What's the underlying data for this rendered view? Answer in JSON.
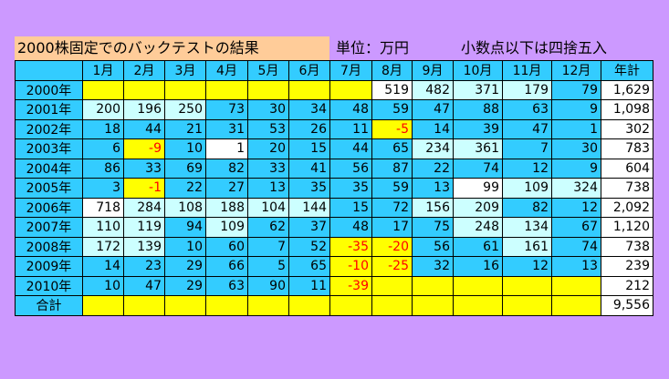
{
  "title": "2000株固定でのバックテストの結果",
  "unit": "単位：万円",
  "note": "小数点以下は四捨五入",
  "headers": [
    "",
    "1月",
    "2月",
    "3月",
    "4月",
    "5月",
    "6月",
    "7月",
    "8月",
    "9月",
    "10月",
    "11月",
    "12月",
    "年計"
  ],
  "rows": [
    {
      "label": "2000年",
      "cells": [
        {
          "v": "",
          "c": "y"
        },
        {
          "v": "",
          "c": "y"
        },
        {
          "v": "",
          "c": "y"
        },
        {
          "v": "",
          "c": "y"
        },
        {
          "v": "",
          "c": "y"
        },
        {
          "v": "",
          "c": "y"
        },
        {
          "v": "",
          "c": "y"
        },
        {
          "v": "519",
          "c": "w"
        },
        {
          "v": "482",
          "c": "l"
        },
        {
          "v": "371",
          "c": "l"
        },
        {
          "v": "179",
          "c": "l"
        },
        {
          "v": "79",
          "c": "b"
        },
        {
          "v": "1,629",
          "c": "w"
        }
      ]
    },
    {
      "label": "2001年",
      "cells": [
        {
          "v": "200",
          "c": "l"
        },
        {
          "v": "196",
          "c": "l"
        },
        {
          "v": "250",
          "c": "l"
        },
        {
          "v": "73",
          "c": "b"
        },
        {
          "v": "30",
          "c": "b"
        },
        {
          "v": "34",
          "c": "b"
        },
        {
          "v": "48",
          "c": "b"
        },
        {
          "v": "59",
          "c": "b"
        },
        {
          "v": "47",
          "c": "b"
        },
        {
          "v": "88",
          "c": "b"
        },
        {
          "v": "63",
          "c": "b"
        },
        {
          "v": "9",
          "c": "b"
        },
        {
          "v": "1,098",
          "c": "w"
        }
      ]
    },
    {
      "label": "2002年",
      "cells": [
        {
          "v": "18",
          "c": "b"
        },
        {
          "v": "44",
          "c": "b"
        },
        {
          "v": "21",
          "c": "b"
        },
        {
          "v": "31",
          "c": "b"
        },
        {
          "v": "53",
          "c": "b"
        },
        {
          "v": "26",
          "c": "b"
        },
        {
          "v": "11",
          "c": "b"
        },
        {
          "v": "-5",
          "c": "y",
          "n": true
        },
        {
          "v": "14",
          "c": "b"
        },
        {
          "v": "39",
          "c": "b"
        },
        {
          "v": "47",
          "c": "b"
        },
        {
          "v": "1",
          "c": "b"
        },
        {
          "v": "302",
          "c": "w"
        }
      ]
    },
    {
      "label": "2003年",
      "cells": [
        {
          "v": "6",
          "c": "b"
        },
        {
          "v": "-9",
          "c": "y",
          "n": true
        },
        {
          "v": "10",
          "c": "b"
        },
        {
          "v": "1",
          "c": "w"
        },
        {
          "v": "20",
          "c": "b"
        },
        {
          "v": "15",
          "c": "b"
        },
        {
          "v": "44",
          "c": "b"
        },
        {
          "v": "65",
          "c": "b"
        },
        {
          "v": "234",
          "c": "l"
        },
        {
          "v": "361",
          "c": "l"
        },
        {
          "v": "7",
          "c": "b"
        },
        {
          "v": "30",
          "c": "b"
        },
        {
          "v": "783",
          "c": "w"
        }
      ]
    },
    {
      "label": "2004年",
      "cells": [
        {
          "v": "86",
          "c": "b"
        },
        {
          "v": "33",
          "c": "b"
        },
        {
          "v": "69",
          "c": "b"
        },
        {
          "v": "82",
          "c": "b"
        },
        {
          "v": "33",
          "c": "b"
        },
        {
          "v": "41",
          "c": "b"
        },
        {
          "v": "56",
          "c": "b"
        },
        {
          "v": "87",
          "c": "b"
        },
        {
          "v": "22",
          "c": "b"
        },
        {
          "v": "74",
          "c": "b"
        },
        {
          "v": "12",
          "c": "b"
        },
        {
          "v": "9",
          "c": "b"
        },
        {
          "v": "604",
          "c": "w"
        }
      ]
    },
    {
      "label": "2005年",
      "cells": [
        {
          "v": "3",
          "c": "b"
        },
        {
          "v": "-1",
          "c": "y",
          "n": true
        },
        {
          "v": "22",
          "c": "b"
        },
        {
          "v": "27",
          "c": "b"
        },
        {
          "v": "13",
          "c": "b"
        },
        {
          "v": "35",
          "c": "b"
        },
        {
          "v": "35",
          "c": "b"
        },
        {
          "v": "59",
          "c": "b"
        },
        {
          "v": "13",
          "c": "b"
        },
        {
          "v": "99",
          "c": "w"
        },
        {
          "v": "109",
          "c": "l"
        },
        {
          "v": "324",
          "c": "l"
        },
        {
          "v": "738",
          "c": "w"
        }
      ]
    },
    {
      "label": "2006年",
      "cells": [
        {
          "v": "718",
          "c": "w"
        },
        {
          "v": "284",
          "c": "l"
        },
        {
          "v": "108",
          "c": "l"
        },
        {
          "v": "188",
          "c": "l"
        },
        {
          "v": "104",
          "c": "l"
        },
        {
          "v": "144",
          "c": "l"
        },
        {
          "v": "15",
          "c": "b"
        },
        {
          "v": "72",
          "c": "b"
        },
        {
          "v": "156",
          "c": "l"
        },
        {
          "v": "209",
          "c": "l"
        },
        {
          "v": "82",
          "c": "b"
        },
        {
          "v": "12",
          "c": "b"
        },
        {
          "v": "2,092",
          "c": "w"
        }
      ]
    },
    {
      "label": "2007年",
      "cells": [
        {
          "v": "110",
          "c": "l"
        },
        {
          "v": "119",
          "c": "l"
        },
        {
          "v": "94",
          "c": "b"
        },
        {
          "v": "109",
          "c": "l"
        },
        {
          "v": "62",
          "c": "b"
        },
        {
          "v": "37",
          "c": "b"
        },
        {
          "v": "48",
          "c": "b"
        },
        {
          "v": "17",
          "c": "b"
        },
        {
          "v": "75",
          "c": "b"
        },
        {
          "v": "248",
          "c": "l"
        },
        {
          "v": "134",
          "c": "l"
        },
        {
          "v": "67",
          "c": "b"
        },
        {
          "v": "1,120",
          "c": "w"
        }
      ]
    },
    {
      "label": "2008年",
      "cells": [
        {
          "v": "172",
          "c": "l"
        },
        {
          "v": "139",
          "c": "l"
        },
        {
          "v": "10",
          "c": "b"
        },
        {
          "v": "60",
          "c": "b"
        },
        {
          "v": "7",
          "c": "b"
        },
        {
          "v": "52",
          "c": "b"
        },
        {
          "v": "-35",
          "c": "y",
          "n": true
        },
        {
          "v": "-20",
          "c": "y",
          "n": true
        },
        {
          "v": "56",
          "c": "b"
        },
        {
          "v": "61",
          "c": "b"
        },
        {
          "v": "161",
          "c": "l"
        },
        {
          "v": "74",
          "c": "b"
        },
        {
          "v": "738",
          "c": "w"
        }
      ]
    },
    {
      "label": "2009年",
      "cells": [
        {
          "v": "14",
          "c": "b"
        },
        {
          "v": "23",
          "c": "b"
        },
        {
          "v": "29",
          "c": "b"
        },
        {
          "v": "66",
          "c": "b"
        },
        {
          "v": "5",
          "c": "b"
        },
        {
          "v": "65",
          "c": "b"
        },
        {
          "v": "-10",
          "c": "y",
          "n": true
        },
        {
          "v": "-25",
          "c": "y",
          "n": true
        },
        {
          "v": "32",
          "c": "b"
        },
        {
          "v": "16",
          "c": "b"
        },
        {
          "v": "12",
          "c": "b"
        },
        {
          "v": "13",
          "c": "b"
        },
        {
          "v": "239",
          "c": "w"
        }
      ]
    },
    {
      "label": "2010年",
      "cells": [
        {
          "v": "10",
          "c": "b"
        },
        {
          "v": "47",
          "c": "b"
        },
        {
          "v": "29",
          "c": "b"
        },
        {
          "v": "63",
          "c": "b"
        },
        {
          "v": "90",
          "c": "b"
        },
        {
          "v": "11",
          "c": "b"
        },
        {
          "v": "-39",
          "c": "y",
          "n": true
        },
        {
          "v": "",
          "c": "y"
        },
        {
          "v": "",
          "c": "y"
        },
        {
          "v": "",
          "c": "y"
        },
        {
          "v": "",
          "c": "y"
        },
        {
          "v": "",
          "c": "y"
        },
        {
          "v": "212",
          "c": "w"
        }
      ]
    },
    {
      "label": "合計",
      "cells": [
        {
          "v": "",
          "c": "y"
        },
        {
          "v": "",
          "c": "y"
        },
        {
          "v": "",
          "c": "y"
        },
        {
          "v": "",
          "c": "y"
        },
        {
          "v": "",
          "c": "y"
        },
        {
          "v": "",
          "c": "y"
        },
        {
          "v": "",
          "c": "y"
        },
        {
          "v": "",
          "c": "y"
        },
        {
          "v": "",
          "c": "y"
        },
        {
          "v": "",
          "c": "y"
        },
        {
          "v": "",
          "c": "y"
        },
        {
          "v": "",
          "c": "y"
        },
        {
          "v": "9,556",
          "c": "w"
        }
      ]
    }
  ]
}
